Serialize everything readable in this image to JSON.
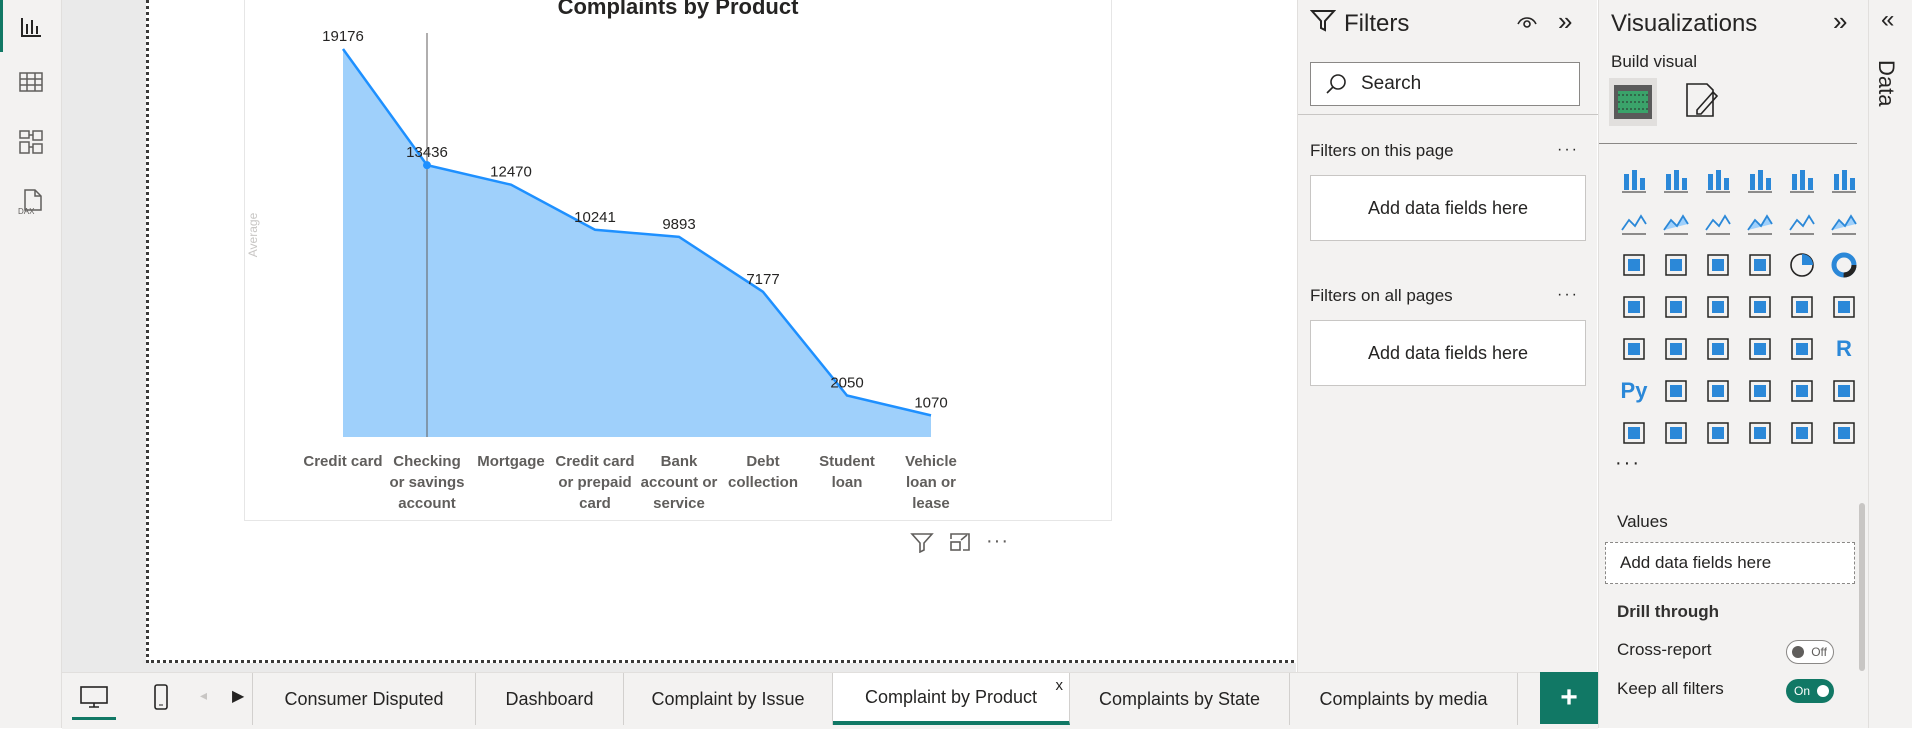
{
  "chart_data": {
    "type": "area",
    "title": "Complaints by Product",
    "ylabel": "Average",
    "categories": [
      "Credit card",
      "Checking or savings account",
      "Mortgage",
      "Credit card or prepaid card",
      "Bank account or service",
      "Debt collection",
      "Student loan",
      "Vehicle loan or lease"
    ],
    "category_lines": [
      [
        "Credit card"
      ],
      [
        "Checking",
        "or savings",
        "account"
      ],
      [
        "Mortgage"
      ],
      [
        "Credit card",
        "or prepaid",
        "card"
      ],
      [
        "Bank",
        "account or",
        "service"
      ],
      [
        "Debt",
        "collection"
      ],
      [
        "Student",
        "loan"
      ],
      [
        "Vehicle",
        "loan or",
        "lease"
      ]
    ],
    "values": [
      19176,
      13436,
      12470,
      10241,
      9893,
      7177,
      2050,
      1070
    ],
    "data_labels": [
      "19176",
      "13436",
      "12470",
      "10241",
      "9893",
      "7177",
      "2050",
      "1070"
    ],
    "ylim": [
      0,
      19176
    ],
    "highlighted_category": "Checking or savings account",
    "series_color": "#1e90ff",
    "fill_color": "#9fd0fb"
  },
  "filters": {
    "title": "Filters",
    "search_placeholder": "Search",
    "this_page_label": "Filters on this page",
    "all_pages_label": "Filters on all pages",
    "well_text": "Add data fields here"
  },
  "visualizations": {
    "title": "Visualizations",
    "build_visual": "Build visual",
    "more": "···",
    "values_label": "Values",
    "values_well": "Add data fields here",
    "drill_through": "Drill through",
    "cross_report_label": "Cross-report",
    "cross_report_state": "Off",
    "keep_filters_label": "Keep all filters",
    "keep_filters_state": "On",
    "accent": "#117865"
  },
  "data_pane": {
    "title": "Data"
  },
  "tabs": [
    {
      "label": "Consumer Disputed"
    },
    {
      "label": "Dashboard"
    },
    {
      "label": "Complaint by Issue"
    },
    {
      "label": "Complaint by Product",
      "close": "x"
    },
    {
      "label": "Complaints by State"
    },
    {
      "label": "Complaints by media"
    }
  ],
  "add_page": "+"
}
